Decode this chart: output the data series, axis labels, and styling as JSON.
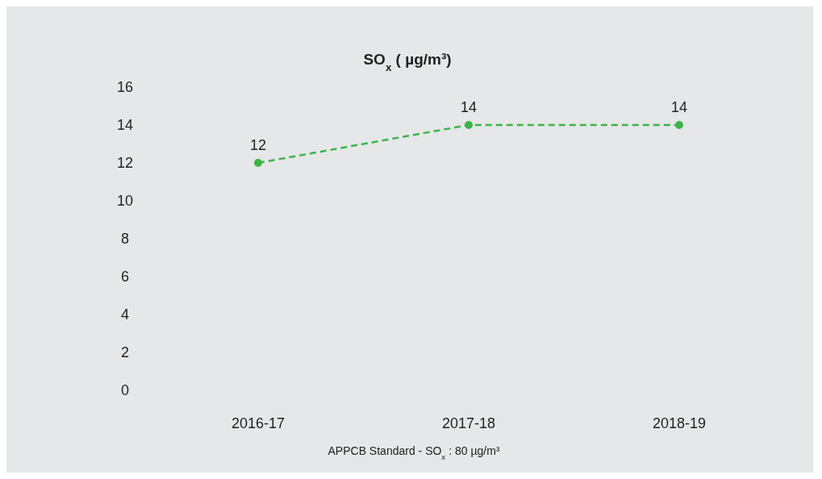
{
  "chart_data": {
    "type": "line",
    "title": "SO$_{x}$ ( µg/m³)",
    "categories": [
      "2016-17",
      "2017-18",
      "2018-19"
    ],
    "series": [
      {
        "color": "#3bb44a",
        "values": [
          12,
          14,
          14
        ]
      }
    ],
    "ylim": [
      0,
      16
    ],
    "yticks": [
      0,
      2,
      4,
      6,
      8,
      10,
      12,
      14,
      16
    ],
    "grid": false,
    "marker": "circle",
    "line_style": "dashed",
    "data_labels": true,
    "annotations": [
      "APPCB Standard - SO$_{x}$ : 80 µg/m³"
    ]
  }
}
